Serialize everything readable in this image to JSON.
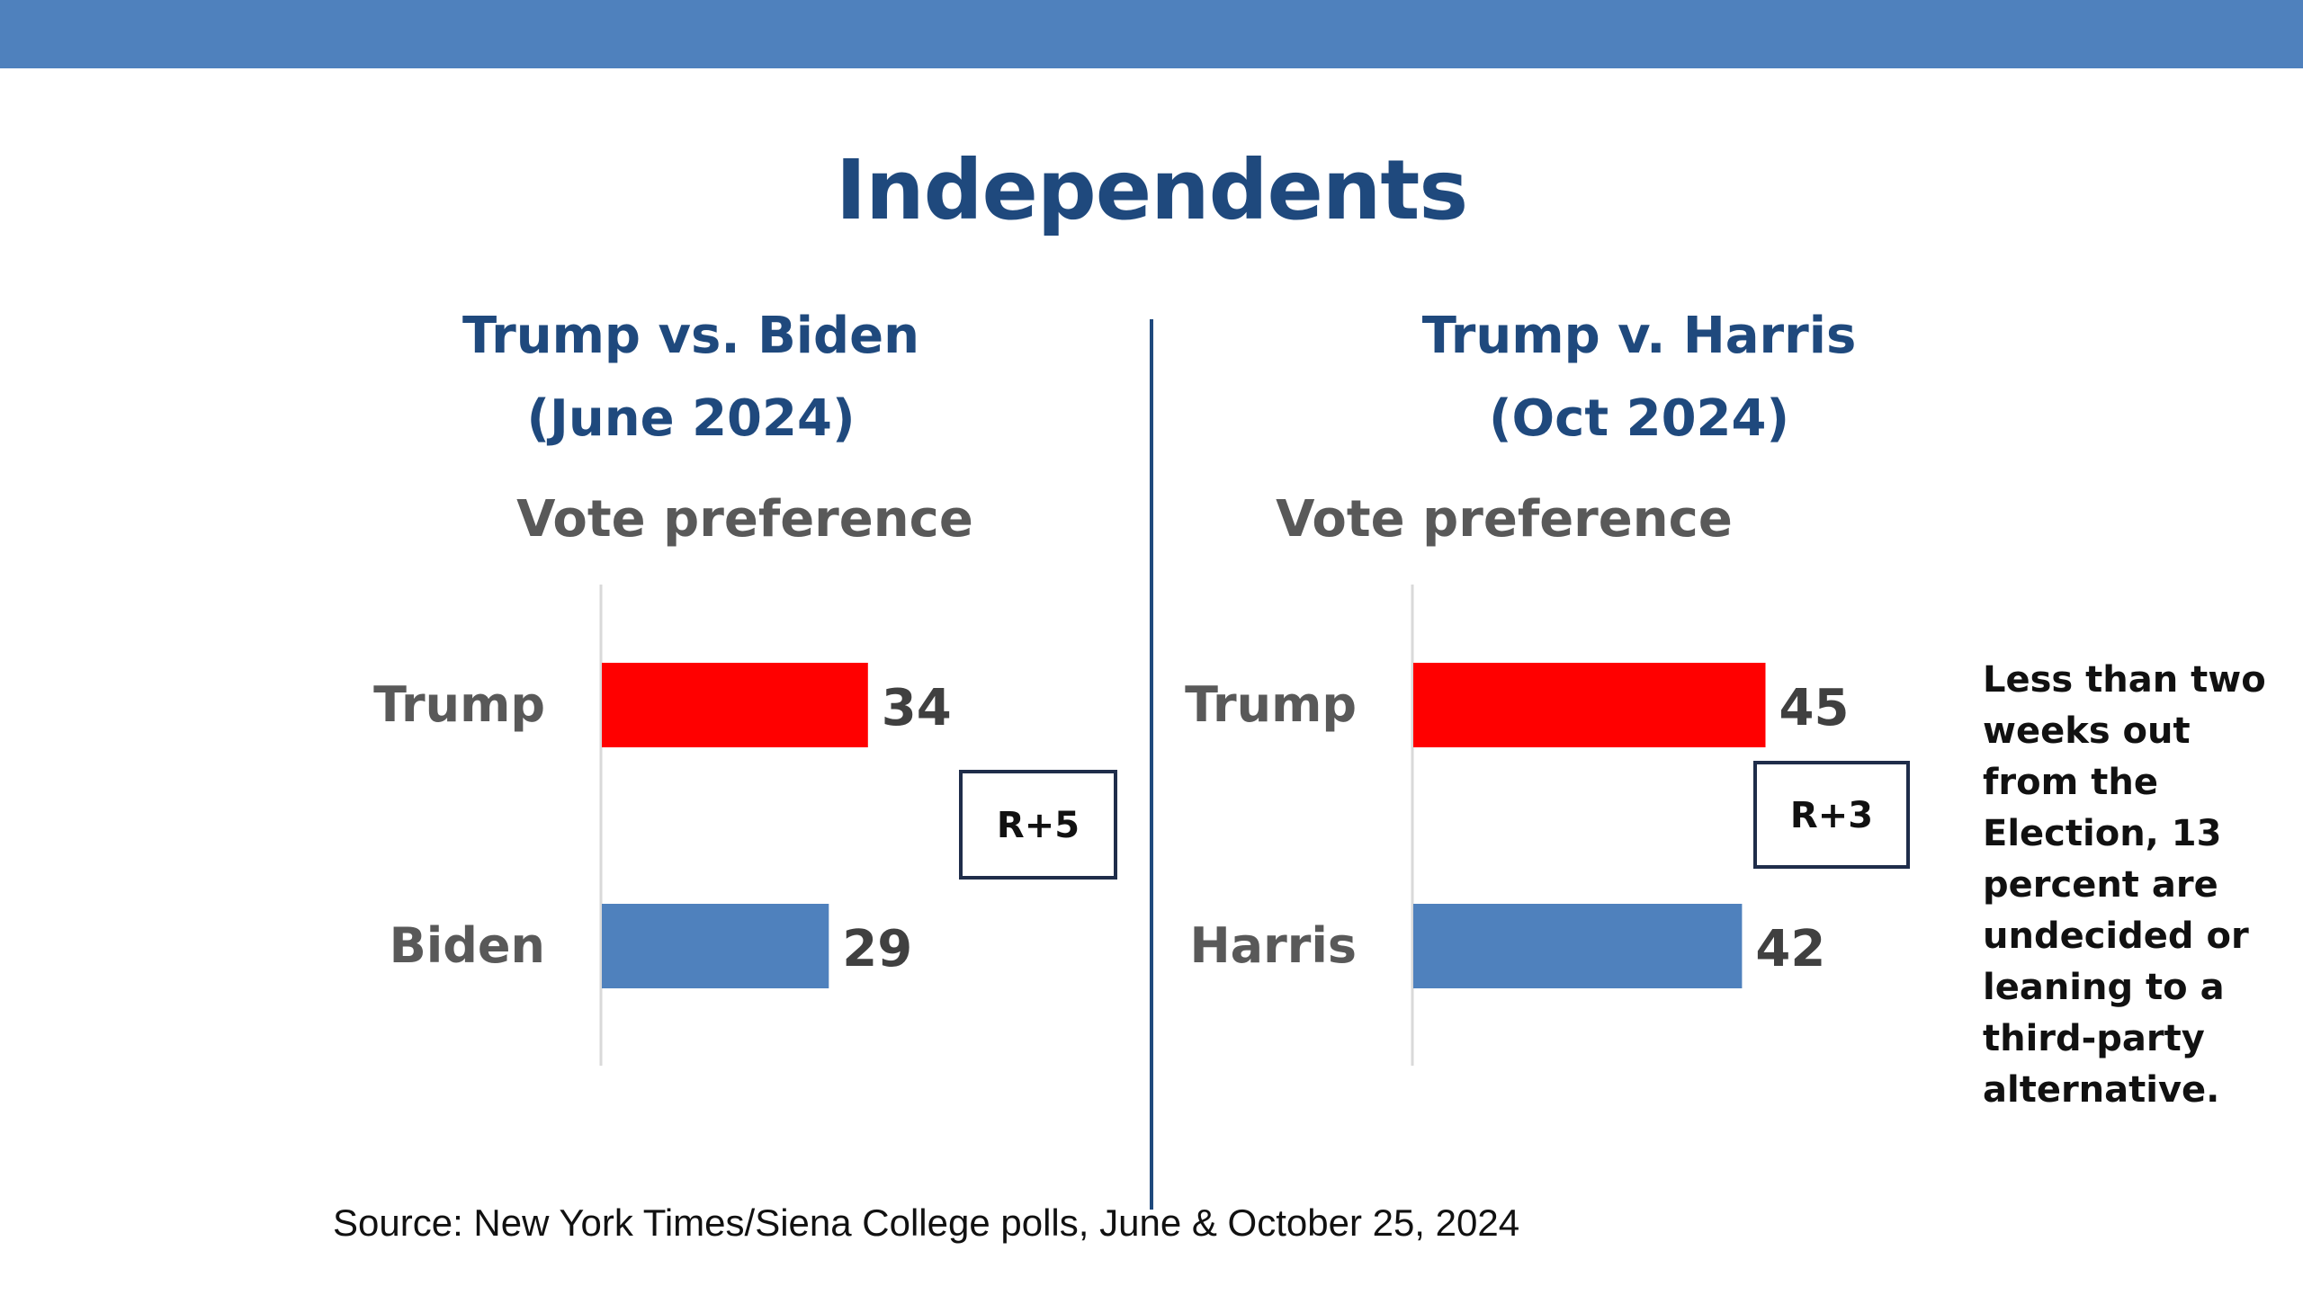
{
  "slide": {
    "title": "Independents",
    "note": "Less than two\n weeks out\n from the\n Election, 13\npercent are\nundecided or\nleaning to a\nthird-party\nalternative.",
    "source": "Source: New York Times/Siena College polls, June & October 25, 2024"
  },
  "colors": {
    "band": "#4f81bd",
    "title": "#1f497d",
    "republican": "#ff0000",
    "democrat": "#4f81bd",
    "axis_label": "#595959",
    "value_label": "#404040"
  },
  "chart_data": [
    {
      "type": "bar",
      "orientation": "horizontal",
      "title": "Trump vs. Biden",
      "subtitle": "(June 2024)",
      "chart_heading": "Vote preference",
      "categories": [
        "Trump",
        "Biden"
      ],
      "values": [
        34,
        29
      ],
      "bar_colors": [
        "#ff0000",
        "#4f81bd"
      ],
      "margin_label": "R+5",
      "xlim": [
        0,
        55
      ],
      "grid": false,
      "legend": "none"
    },
    {
      "type": "bar",
      "orientation": "horizontal",
      "title": "Trump v. Harris",
      "subtitle": "(Oct 2024)",
      "chart_heading": "Vote preference",
      "categories": [
        "Trump",
        "Harris"
      ],
      "values": [
        45,
        42
      ],
      "bar_colors": [
        "#ff0000",
        "#4f81bd"
      ],
      "margin_label": "R+3",
      "xlim": [
        0,
        55
      ],
      "grid": false,
      "legend": "none"
    }
  ]
}
